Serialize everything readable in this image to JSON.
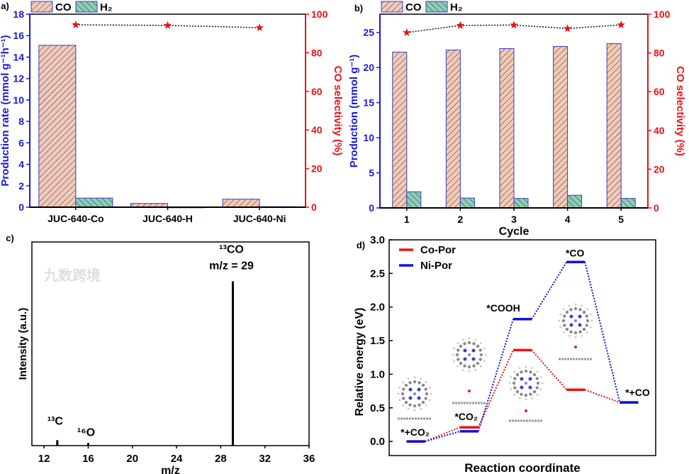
{
  "colors": {
    "co_fill": "#f6cba9",
    "h2_fill": "#8fcfae",
    "bar_edge": "#3a3ad0",
    "left_axis": "#1a1ad8",
    "right_axis": "#ee1111",
    "co_por": "#ee1111",
    "ni_por": "#1111dd"
  },
  "watermark": "九数跨境",
  "chart_data": [
    {
      "panel": "a)",
      "type": "bar",
      "categories": [
        "JUC-640-Co",
        "JUC-640-H",
        "JUC-640-Ni"
      ],
      "series": [
        {
          "name": "CO",
          "values": [
            15.1,
            0.35,
            0.75
          ]
        },
        {
          "name": "H₂",
          "values": [
            0.85,
            0.0,
            0.05
          ]
        }
      ],
      "selectivity": {
        "name": "CO selectivity",
        "values": [
          94.5,
          94.2,
          93.0
        ]
      },
      "ylabel": "Production rate (mmol g⁻¹h⁻¹)",
      "y2label": "CO selectivity (%)",
      "xlabel": "",
      "ylim": [
        0,
        18
      ],
      "yticks": [
        "0",
        "2",
        "4",
        "6",
        "8",
        "10",
        "12",
        "14",
        "16",
        "18"
      ],
      "y2lim": [
        0,
        100
      ],
      "y2ticks": [
        "0",
        "20",
        "40",
        "60",
        "80",
        "100"
      ],
      "legend": [
        "CO",
        "H₂"
      ],
      "legend_position": "top-left"
    },
    {
      "panel": "b)",
      "type": "bar",
      "categories": [
        "1",
        "2",
        "3",
        "4",
        "5"
      ],
      "series": [
        {
          "name": "CO",
          "values": [
            22.2,
            22.5,
            22.7,
            23.0,
            23.4
          ]
        },
        {
          "name": "H₂",
          "values": [
            2.3,
            1.4,
            1.35,
            1.8,
            1.35
          ]
        }
      ],
      "selectivity": {
        "name": "CO selectivity",
        "values": [
          90.5,
          94.2,
          94.4,
          92.6,
          94.5
        ]
      },
      "ylabel": "Production (mmol g⁻¹)",
      "y2label": "CO selectivity (%)",
      "xlabel": "Cycle",
      "ylim": [
        0,
        27.6
      ],
      "yticks": [
        "0",
        "5",
        "10",
        "15",
        "20",
        "25"
      ],
      "y2lim": [
        0,
        100
      ],
      "y2ticks": [
        "0",
        "20",
        "40",
        "60",
        "80",
        "100"
      ],
      "legend": [
        "CO",
        "H₂"
      ],
      "legend_position": "top-left"
    },
    {
      "panel": "c)",
      "type": "bar",
      "xlabel": "m/z",
      "ylabel": "Intensity (a.u.)",
      "xlim": [
        10.9,
        36
      ],
      "xticks": [
        "12",
        "16",
        "20",
        "24",
        "28",
        "32",
        "36"
      ],
      "ylim": [
        0,
        124
      ],
      "peaks": [
        {
          "mz": 13.2,
          "intensity": 3.3,
          "label": "¹³C"
        },
        {
          "mz": 16.0,
          "intensity": 1.6,
          "label": "¹⁶O"
        },
        {
          "mz": 29.1,
          "intensity": 100,
          "label": "¹³CO",
          "sublabel": "m/z = 29"
        }
      ]
    },
    {
      "panel": "d)",
      "type": "line",
      "xlabel": "Reaction coordinate",
      "ylabel": "Relative energy (eV)",
      "ylim": [
        -0.21,
        3.0
      ],
      "yticks": [
        "0.0",
        "0.5",
        "1.0",
        "1.5",
        "2.0",
        "2.5",
        "3.0"
      ],
      "states": [
        "*+CO₂",
        "*CO₂",
        "*COOH",
        "*CO",
        "*+CO"
      ],
      "series": [
        {
          "name": "Co-Por",
          "values": [
            0.0,
            0.21,
            1.36,
            0.77,
            0.58
          ]
        },
        {
          "name": "Ni-Por",
          "values": [
            0.0,
            0.15,
            1.82,
            2.67,
            0.58
          ]
        }
      ],
      "legend_position": "top-left"
    }
  ]
}
